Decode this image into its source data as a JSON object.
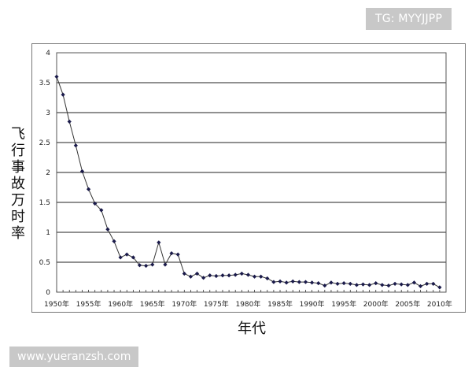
{
  "watermark_top": "TG: MYYJJPP",
  "watermark_bottom": "www.yueranzsh.com",
  "chart_data": {
    "type": "line",
    "title": "",
    "ylabel": "飞行事故万时率",
    "xlabel": "年代",
    "ylim": [
      0,
      4
    ],
    "yticks": [
      "0",
      "0.5",
      "1",
      "1.5",
      "2",
      "2.5",
      "3",
      "3.5",
      "4"
    ],
    "xlim": [
      1950,
      2011
    ],
    "xticks": [
      "1950年",
      "1955年",
      "1960年",
      "1965年",
      "1970年",
      "1975年",
      "1980年",
      "1985年",
      "1990年",
      "1995年",
      "2000年",
      "2005年",
      "2010年"
    ],
    "grid": "horizontal",
    "series": [
      {
        "x": [
          1950,
          1951,
          1952,
          1953,
          1954,
          1955,
          1956,
          1957,
          1958,
          1959,
          1960,
          1961,
          1962,
          1963,
          1964,
          1965,
          1966,
          1967,
          1968,
          1969,
          1970,
          1971,
          1972,
          1973,
          1974,
          1975,
          1976,
          1977,
          1978,
          1979,
          1980,
          1981,
          1982,
          1983,
          1984,
          1985,
          1986,
          1987,
          1988,
          1989,
          1990,
          1991,
          1992,
          1993,
          1994,
          1995,
          1996,
          1997,
          1998,
          1999,
          2000,
          2001,
          2002,
          2003,
          2004,
          2005,
          2006,
          2007,
          2008,
          2009,
          2010
        ],
        "values": [
          3.6,
          3.3,
          2.85,
          2.45,
          2.02,
          1.72,
          1.48,
          1.37,
          1.05,
          0.85,
          0.58,
          0.63,
          0.58,
          0.45,
          0.44,
          0.46,
          0.83,
          0.46,
          0.65,
          0.63,
          0.31,
          0.26,
          0.31,
          0.24,
          0.28,
          0.27,
          0.28,
          0.28,
          0.29,
          0.31,
          0.29,
          0.26,
          0.26,
          0.23,
          0.17,
          0.18,
          0.16,
          0.18,
          0.17,
          0.17,
          0.16,
          0.15,
          0.11,
          0.16,
          0.14,
          0.15,
          0.14,
          0.12,
          0.13,
          0.12,
          0.15,
          0.12,
          0.11,
          0.14,
          0.13,
          0.12,
          0.16,
          0.1,
          0.14,
          0.14,
          0.08
        ]
      }
    ]
  }
}
